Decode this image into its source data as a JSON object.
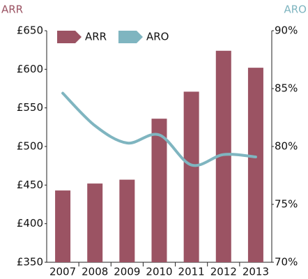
{
  "chart_data": {
    "type": "bar",
    "y_axis_label": "ARR",
    "y2_axis_label": "ARO",
    "categories": [
      "2007",
      "2008",
      "2009",
      "2010",
      "2011",
      "2012",
      "2013"
    ],
    "series": [
      {
        "name": "ARR",
        "type": "bar",
        "color": "#9b5363",
        "values": [
          443,
          452,
          457,
          536,
          571,
          624,
          602
        ]
      },
      {
        "name": "ARO",
        "type": "line",
        "axis": "y2",
        "color": "#7fb5c0",
        "values": [
          84.6,
          81.8,
          80.3,
          81.0,
          78.4,
          79.3,
          79.1
        ]
      }
    ],
    "ylim": [
      350,
      650
    ],
    "yticks": [
      {
        "value": 350,
        "label": "£350"
      },
      {
        "value": 400,
        "label": "£400"
      },
      {
        "value": 450,
        "label": "£450"
      },
      {
        "value": 500,
        "label": "£500"
      },
      {
        "value": 550,
        "label": "£550"
      },
      {
        "value": 600,
        "label": "£600"
      },
      {
        "value": 650,
        "label": "£650"
      }
    ],
    "y2lim": [
      70,
      90
    ],
    "y2ticks": [
      {
        "value": 70,
        "label": "70%"
      },
      {
        "value": 75,
        "label": "75%"
      },
      {
        "value": 80,
        "label": "80%"
      },
      {
        "value": 85,
        "label": "85%"
      },
      {
        "value": 90,
        "label": "90%"
      }
    ],
    "legend": "top-left"
  }
}
